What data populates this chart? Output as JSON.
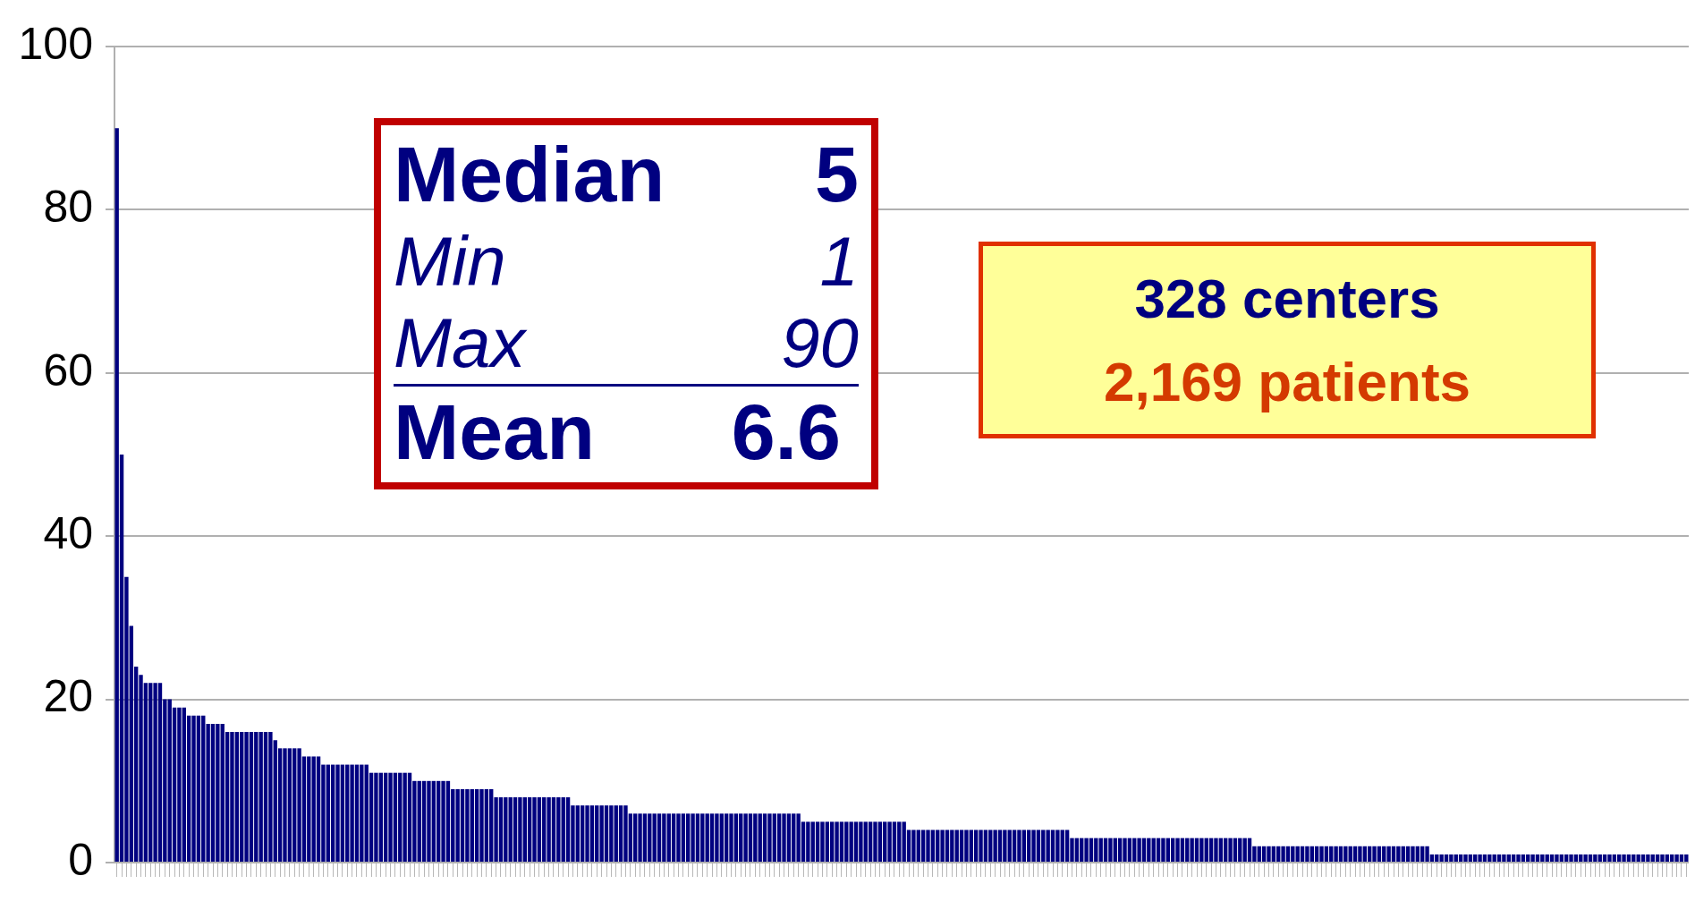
{
  "chart_data": {
    "type": "bar",
    "categories": [
      null,
      null,
      null,
      null,
      null,
      null,
      null,
      null,
      null,
      null,
      null,
      null,
      null,
      null,
      null,
      null,
      null,
      null,
      null,
      null,
      null,
      null,
      null,
      null,
      null,
      null,
      null,
      null,
      null,
      null,
      null,
      null,
      null,
      null,
      null,
      null,
      null,
      null,
      null,
      null,
      null,
      null,
      null,
      null,
      null,
      null,
      null,
      null,
      null,
      null,
      null,
      null,
      null,
      null,
      null,
      null,
      null,
      null,
      null,
      null,
      null,
      null,
      null,
      null,
      null,
      null,
      null,
      null,
      null,
      null,
      null,
      null,
      null,
      null,
      null,
      null,
      null,
      null,
      null,
      null,
      null,
      null,
      null,
      null,
      null,
      null,
      null,
      null,
      null,
      null,
      null,
      null,
      null,
      null,
      null,
      null,
      null,
      null,
      null,
      null,
      null,
      null,
      null,
      null,
      null,
      null,
      null,
      null,
      null,
      null,
      null,
      null,
      null,
      null,
      null,
      null,
      null,
      null,
      null,
      null,
      null,
      null,
      null,
      null,
      null,
      null,
      null,
      null,
      null,
      null,
      null,
      null,
      null,
      null,
      null,
      null,
      null,
      null,
      null,
      null,
      null,
      null,
      null,
      null,
      null,
      null,
      null,
      null,
      null,
      null,
      null,
      null,
      null,
      null,
      null,
      null,
      null,
      null,
      null,
      null,
      null,
      null,
      null,
      null,
      null,
      null,
      null,
      null,
      null,
      null,
      null,
      null,
      null,
      null,
      null,
      null,
      null,
      null,
      null,
      null,
      null,
      null,
      null,
      null,
      null,
      null,
      null,
      null,
      null,
      null,
      null,
      null,
      null,
      null,
      null,
      null,
      null,
      null,
      null,
      null,
      null,
      null,
      null,
      null,
      null,
      null,
      null,
      null,
      null,
      null,
      null,
      null,
      null,
      null,
      null,
      null,
      null,
      null,
      null,
      null,
      null,
      null,
      null,
      null,
      null,
      null,
      null,
      null,
      null,
      null,
      null,
      null,
      null,
      null,
      null,
      null,
      null,
      null,
      null,
      null,
      null,
      null,
      null,
      null,
      null,
      null,
      null,
      null,
      null,
      null,
      null,
      null,
      null,
      null,
      null,
      null,
      null,
      null,
      null,
      null,
      null,
      null,
      null,
      null,
      null,
      null,
      null,
      null,
      null,
      null,
      null,
      null,
      null,
      null,
      null,
      null,
      null,
      null,
      null,
      null,
      null,
      null,
      null,
      null,
      null,
      null,
      null,
      null,
      null,
      null,
      null,
      null,
      null,
      null,
      null,
      null,
      null,
      null,
      null,
      null,
      null,
      null,
      null,
      null,
      null,
      null,
      null,
      null,
      null,
      null,
      null,
      null,
      null,
      null,
      null,
      null,
      null,
      null,
      null,
      null,
      null,
      null,
      null,
      null,
      null,
      null,
      null,
      null
    ],
    "values": [
      90,
      50,
      35,
      29,
      24,
      23,
      22,
      22,
      22,
      22,
      20,
      20,
      19,
      19,
      19,
      18,
      18,
      18,
      18,
      17,
      17,
      17,
      17,
      16,
      16,
      16,
      16,
      16,
      16,
      16,
      16,
      16,
      16,
      15,
      14,
      14,
      14,
      14,
      14,
      13,
      13,
      13,
      13,
      12,
      12,
      12,
      12,
      12,
      12,
      12,
      12,
      12,
      12,
      11,
      11,
      11,
      11,
      11,
      11,
      11,
      11,
      11,
      10,
      10,
      10,
      10,
      10,
      10,
      10,
      10,
      9,
      9,
      9,
      9,
      9,
      9,
      9,
      9,
      9,
      8,
      8,
      8,
      8,
      8,
      8,
      8,
      8,
      8,
      8,
      8,
      8,
      8,
      8,
      8,
      8,
      7,
      7,
      7,
      7,
      7,
      7,
      7,
      7,
      7,
      7,
      7,
      7,
      6,
      6,
      6,
      6,
      6,
      6,
      6,
      6,
      6,
      6,
      6,
      6,
      6,
      6,
      6,
      6,
      6,
      6,
      6,
      6,
      6,
      6,
      6,
      6,
      6,
      6,
      6,
      6,
      6,
      6,
      6,
      6,
      6,
      6,
      6,
      6,
      5,
      5,
      5,
      5,
      5,
      5,
      5,
      5,
      5,
      5,
      5,
      5,
      5,
      5,
      5,
      5,
      5,
      5,
      5,
      5,
      5,
      5,
      4,
      4,
      4,
      4,
      4,
      4,
      4,
      4,
      4,
      4,
      4,
      4,
      4,
      4,
      4,
      4,
      4,
      4,
      4,
      4,
      4,
      4,
      4,
      4,
      4,
      4,
      4,
      4,
      4,
      4,
      4,
      4,
      4,
      4,
      3,
      3,
      3,
      3,
      3,
      3,
      3,
      3,
      3,
      3,
      3,
      3,
      3,
      3,
      3,
      3,
      3,
      3,
      3,
      3,
      3,
      3,
      3,
      3,
      3,
      3,
      3,
      3,
      3,
      3,
      3,
      3,
      3,
      3,
      3,
      3,
      3,
      3,
      2,
      2,
      2,
      2,
      2,
      2,
      2,
      2,
      2,
      2,
      2,
      2,
      2,
      2,
      2,
      2,
      2,
      2,
      2,
      2,
      2,
      2,
      2,
      2,
      2,
      2,
      2,
      2,
      2,
      2,
      2,
      2,
      2,
      2,
      2,
      2,
      2,
      1,
      1,
      1,
      1,
      1,
      1,
      1,
      1,
      1,
      1,
      1,
      1,
      1,
      1,
      1,
      1,
      1,
      1,
      1,
      1,
      1,
      1,
      1,
      1,
      1,
      1,
      1,
      1,
      1,
      1,
      1,
      1,
      1,
      1,
      1,
      1,
      1,
      1,
      1,
      1,
      1,
      1,
      1,
      1,
      1,
      1,
      1,
      1,
      1,
      1,
      1,
      1,
      1,
      1
    ],
    "color": "#000080",
    "ylim": [
      0,
      100
    ],
    "yticks": [
      0,
      20,
      40,
      60,
      80,
      100
    ],
    "grid": "y",
    "tick_labels": "y",
    "annotations": [
      "Median 5",
      "Min 1",
      "Max 90",
      "Mean 6.6",
      "328 centers",
      "2,169 patients"
    ]
  }
}
